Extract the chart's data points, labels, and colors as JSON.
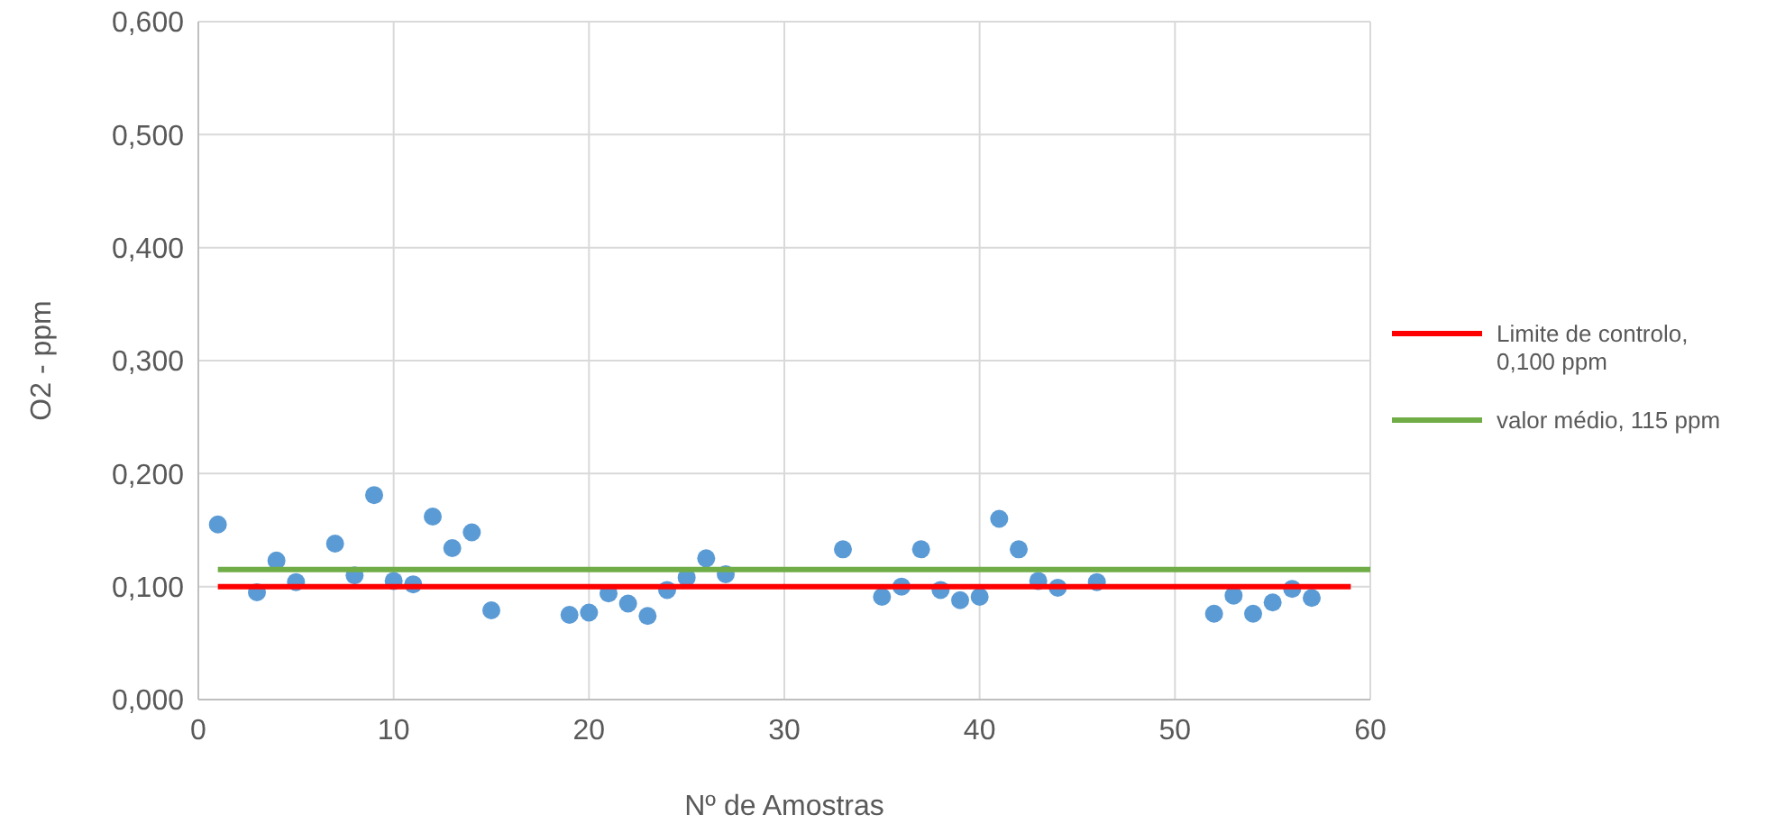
{
  "chart_data": {
    "type": "scatter",
    "xlabel": "Nº de Amostras",
    "ylabel": "O2 - ppm",
    "xlim": [
      0,
      60
    ],
    "xticks": [
      0,
      10,
      20,
      30,
      40,
      50,
      60
    ],
    "ylim": [
      0,
      0.6
    ],
    "yticks": [
      {
        "value": 0,
        "label": "0,000"
      },
      {
        "value": 0.1,
        "label": "0,100"
      },
      {
        "value": 0.2,
        "label": "0,200"
      },
      {
        "value": 0.3,
        "label": "0,300"
      },
      {
        "value": 0.4,
        "label": "0,400"
      },
      {
        "value": 0.5,
        "label": "0,500"
      },
      {
        "value": 0.6,
        "label": "0,600"
      }
    ],
    "grid": true,
    "legend": "right",
    "series": [
      {
        "color": "#5b9bd5",
        "marker": "circle",
        "x": [
          1,
          3,
          4,
          5,
          7,
          8,
          9,
          10,
          11,
          12,
          13,
          14,
          15,
          19,
          20,
          21,
          22,
          23,
          24,
          25,
          26,
          27,
          33,
          35,
          36,
          37,
          38,
          39,
          40,
          41,
          42,
          43,
          44,
          46,
          52,
          53,
          54,
          55,
          56,
          57
        ],
        "values": [
          0.155,
          0.095,
          0.123,
          0.104,
          0.138,
          0.11,
          0.181,
          0.105,
          0.102,
          0.162,
          0.134,
          0.148,
          0.079,
          0.075,
          0.077,
          0.094,
          0.085,
          0.074,
          0.097,
          0.108,
          0.125,
          0.111,
          0.133,
          0.091,
          0.1,
          0.133,
          0.097,
          0.088,
          0.091,
          0.16,
          0.133,
          0.105,
          0.099,
          0.104,
          0.076,
          0.092,
          0.076,
          0.086,
          0.098,
          0.09
        ]
      },
      {
        "type": "line",
        "name": "Limite de controlo, 0,100 ppm",
        "color": "#ff0000",
        "x": [
          1,
          59
        ],
        "values": [
          0.1,
          0.1
        ]
      },
      {
        "type": "line",
        "name": "valor médio, 115 ppm",
        "color": "#70ad47",
        "x": [
          1,
          60
        ],
        "values": [
          0.115,
          0.115
        ]
      }
    ]
  }
}
